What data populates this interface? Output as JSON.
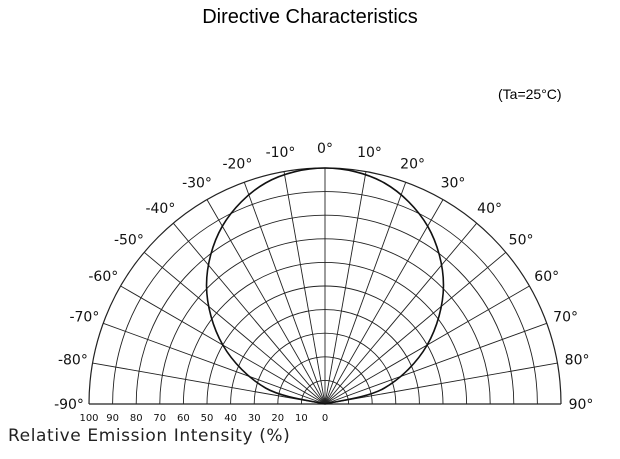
{
  "title": "Directive Characteristics",
  "condition": "(Ta=25°C)",
  "chart_data": {
    "type": "polar",
    "title": "Directive Characteristics",
    "annotation": "(Ta=25°C)",
    "xlabel": "Relative Emission Intensity (%)",
    "angle_unit_suffix": "°",
    "angle_ticks": [
      -90,
      -80,
      -70,
      -60,
      -50,
      -40,
      -30,
      -20,
      -10,
      0,
      10,
      20,
      30,
      40,
      50,
      60,
      70,
      80,
      90
    ],
    "radial_ticks": [
      100,
      90,
      80,
      70,
      60,
      50,
      40,
      30,
      20,
      10,
      0
    ],
    "radial_range": [
      0,
      100
    ],
    "grid": true,
    "series": [
      {
        "angles": [
          -90,
          -75,
          -60,
          -45,
          -30,
          -15,
          0,
          15,
          30,
          45,
          60,
          75,
          90
        ],
        "values": [
          0,
          26,
          50,
          71,
          87,
          97,
          100,
          97,
          87,
          71,
          50,
          26,
          0
        ]
      }
    ]
  }
}
